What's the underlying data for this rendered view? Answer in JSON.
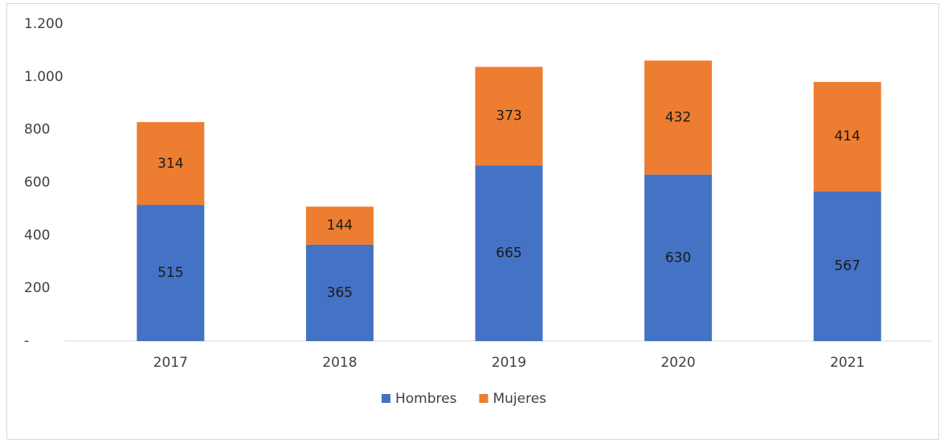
{
  "chart_data": {
    "type": "stacked_bar",
    "categories": [
      "2017",
      "2018",
      "2019",
      "2020",
      "2021"
    ],
    "series": [
      {
        "name": "Hombres",
        "color": "#4472c4",
        "values": [
          515,
          365,
          665,
          630,
          567
        ]
      },
      {
        "name": "Mujeres",
        "color": "#ed7d31",
        "values": [
          314,
          144,
          373,
          432,
          414
        ]
      }
    ],
    "ylim": [
      0,
      1200
    ],
    "yticks": [
      {
        "value": 0,
        "label": "-"
      },
      200,
      400,
      600,
      800,
      {
        "value": 1000,
        "label": "1.000"
      },
      {
        "value": 1200,
        "label": "1.200"
      }
    ],
    "grid": false,
    "legend": "bottom"
  }
}
